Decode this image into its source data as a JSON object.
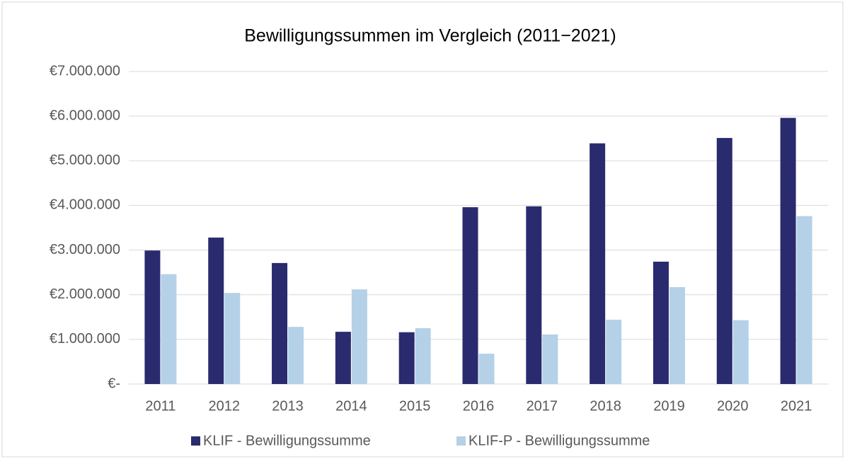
{
  "chart_data": {
    "type": "bar",
    "title": "Bewilligungssummen im Vergleich (2011−2021)",
    "categories": [
      "2011",
      "2012",
      "2013",
      "2014",
      "2015",
      "2016",
      "2017",
      "2018",
      "2019",
      "2020",
      "2021"
    ],
    "series": [
      {
        "name": "KLIF - Bewilligungssumme",
        "color": "#2a2b6e",
        "values": [
          2990000,
          3280000,
          2710000,
          1170000,
          1160000,
          3960000,
          3980000,
          5390000,
          2740000,
          5510000,
          5960000
        ]
      },
      {
        "name": "KLIF-P - Bewilligungssumme",
        "color": "#b4d1e8",
        "values": [
          2460000,
          2040000,
          1280000,
          2120000,
          1250000,
          680000,
          1110000,
          1440000,
          2170000,
          1430000,
          3760000
        ]
      }
    ],
    "ylim": [
      0,
      7000000
    ],
    "yticks": [
      {
        "value": 0,
        "label": "€-"
      },
      {
        "value": 1000000,
        "label": "€1.000.000"
      },
      {
        "value": 2000000,
        "label": "€2.000.000"
      },
      {
        "value": 3000000,
        "label": "€3.000.000"
      },
      {
        "value": 4000000,
        "label": "€4.000.000"
      },
      {
        "value": 5000000,
        "label": "€5.000.000"
      },
      {
        "value": 6000000,
        "label": "€6.000.000"
      },
      {
        "value": 7000000,
        "label": "€7.000.000"
      }
    ],
    "grid": true,
    "legend": "bottom"
  }
}
